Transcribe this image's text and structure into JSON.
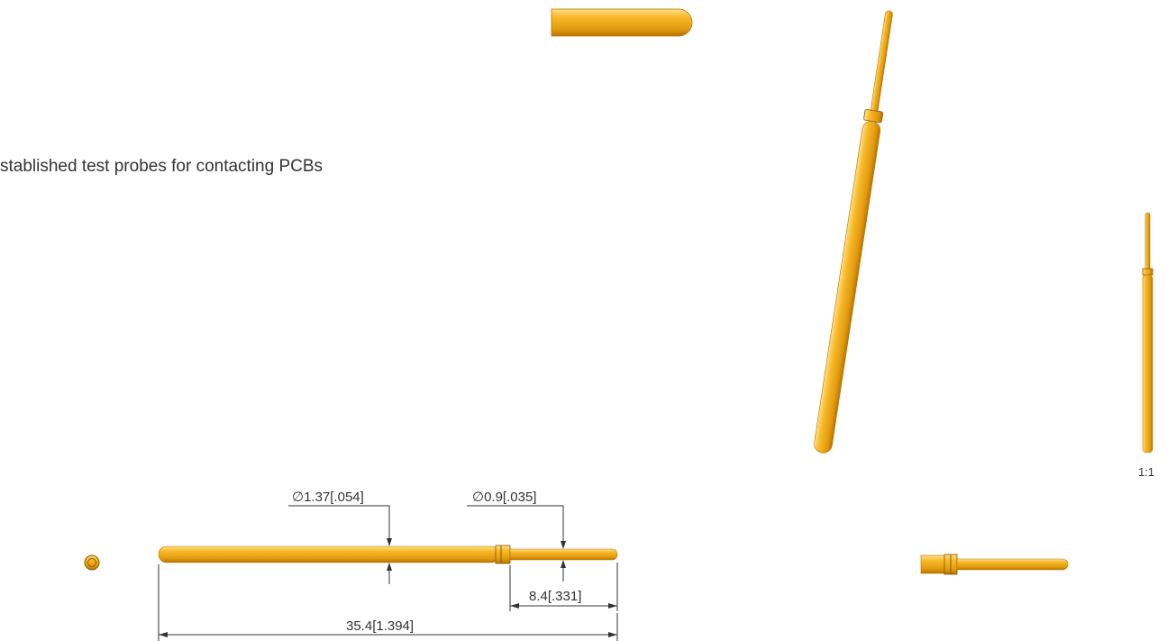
{
  "intro": "stablished test probes for contacting PCBs",
  "dimensions": {
    "body_diameter": "∅1.37[.054]",
    "tip_diameter": "∅0.9[.035]",
    "tip_length": "8.4[.331]",
    "total_length": "35.4[1.394]"
  },
  "scale": "1:1"
}
